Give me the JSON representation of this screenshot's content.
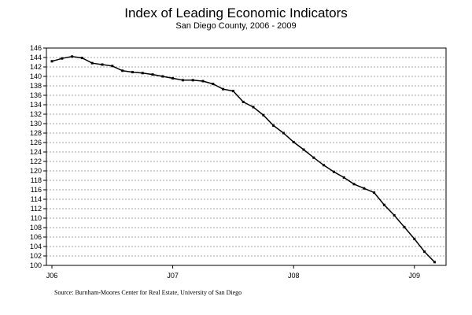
{
  "chart_data": {
    "type": "line",
    "title": "Index of Leading Economic Indicators",
    "subtitle": "San Diego County, 2006 - 2009",
    "xlabel": "",
    "ylabel": "",
    "ylim": [
      100,
      146
    ],
    "y_ticks": [
      100,
      102,
      104,
      106,
      108,
      110,
      112,
      114,
      116,
      118,
      120,
      122,
      124,
      126,
      128,
      130,
      132,
      134,
      136,
      138,
      140,
      142,
      144,
      146
    ],
    "x_tick_labels": [
      {
        "label": "J06",
        "month": 0
      },
      {
        "label": "J07",
        "month": 12
      },
      {
        "label": "J08",
        "month": 24
      },
      {
        "label": "J09",
        "month": 36
      }
    ],
    "grid": "horizontal-dashed",
    "legend": "none",
    "line_color": "#000000",
    "series": [
      {
        "x": [
          "2006-01",
          "2006-02",
          "2006-03",
          "2006-04",
          "2006-05",
          "2006-06",
          "2006-07",
          "2006-08",
          "2006-09",
          "2006-10",
          "2006-11",
          "2006-12",
          "2007-01",
          "2007-02",
          "2007-03",
          "2007-04",
          "2007-05",
          "2007-06",
          "2007-07",
          "2007-08",
          "2007-09",
          "2007-10",
          "2007-11",
          "2007-12",
          "2008-01",
          "2008-02",
          "2008-03",
          "2008-04",
          "2008-05",
          "2008-06",
          "2008-07",
          "2008-08",
          "2008-09",
          "2008-10",
          "2008-11",
          "2008-12",
          "2009-01",
          "2009-02",
          "2009-03"
        ],
        "values": [
          143.2,
          143.8,
          144.2,
          143.9,
          142.8,
          142.5,
          142.2,
          141.2,
          140.9,
          140.7,
          140.4,
          140.0,
          139.6,
          139.2,
          139.2,
          139.0,
          138.4,
          137.3,
          136.9,
          134.6,
          133.5,
          131.8,
          129.6,
          128.0,
          126.1,
          124.5,
          122.8,
          121.2,
          119.8,
          118.6,
          117.2,
          116.3,
          115.4,
          112.8,
          110.6,
          108.1,
          105.6,
          102.9,
          100.7
        ]
      }
    ]
  },
  "footer": {
    "source": "Source:  Burnham-Moores Center for Real Estate, University of San Diego"
  }
}
